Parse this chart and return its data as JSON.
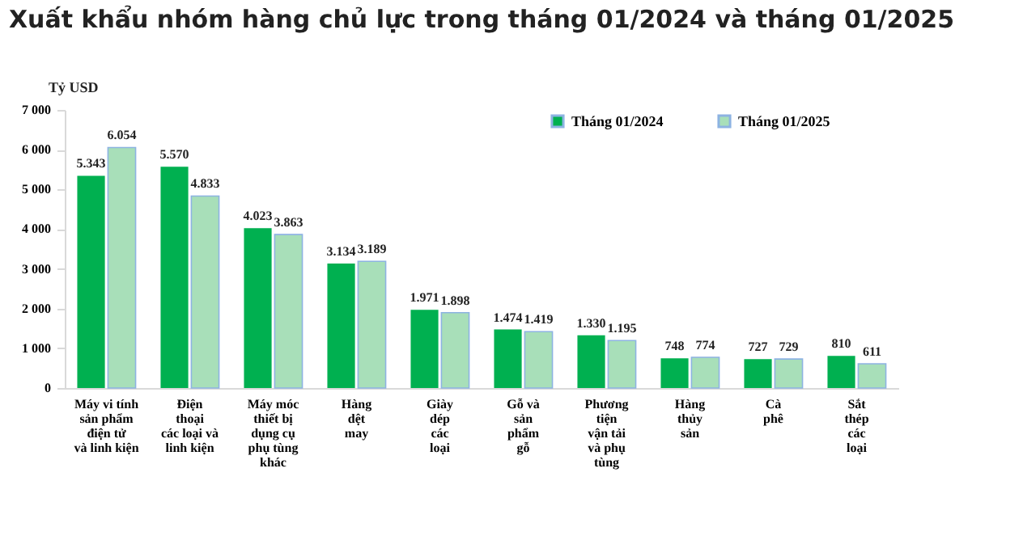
{
  "chart_data": {
    "type": "bar",
    "title": "Xuất khẩu nhóm hàng chủ lực trong tháng 01/2024 và tháng 01/2025",
    "ylabel": "Tỷ USD",
    "categories": [
      "Máy vi tính\nsản phẩm\nđiện tử\nvà linh kiện",
      "Điện\nthoại\ncác loại và\nlinh kiện",
      "Máy móc\nthiết bị\ndụng cụ\nphụ tùng\nkhác",
      "Hàng\ndệt\nmay",
      "Giày\ndép\ncác\nloại",
      "Gỗ và\nsản\nphẩm\ngỗ",
      "Phương\ntiện\nvận tải\nvà phụ\ntùng",
      "Hàng\nthủy\nsản",
      "Cà\nphê",
      "Sắt\nthép\ncác\nloại"
    ],
    "series": [
      {
        "name": "Tháng 01/2024",
        "color": "#00b050",
        "values": [
          5343,
          5570,
          4023,
          3134,
          1971,
          1474,
          1330,
          748,
          727,
          810
        ],
        "value_labels": [
          "5.343",
          "5.570",
          "4.023",
          "3.134",
          "1.971",
          "1.474",
          "1.330",
          "748",
          "727",
          "810"
        ]
      },
      {
        "name": "Tháng 01/2025",
        "color": "#a8dfb9",
        "values": [
          6054,
          4833,
          3863,
          3189,
          1898,
          1419,
          1195,
          774,
          729,
          611
        ],
        "value_labels": [
          "6.054",
          "4.833",
          "3.863",
          "3.189",
          "1.898",
          "1.419",
          "1.195",
          "774",
          "729",
          "611"
        ]
      }
    ],
    "ylim": [
      0,
      7000
    ],
    "yticks": [
      0,
      {
        "value": 1000,
        "label": "1 000"
      },
      {
        "value": 2000,
        "label": "2 000"
      },
      {
        "value": 3000,
        "label": "3 000"
      },
      {
        "value": 4000,
        "label": "4 000"
      },
      {
        "value": 5000,
        "label": "5 000"
      },
      {
        "value": 6000,
        "label": "6 000"
      },
      {
        "value": 7000,
        "label": "7 000"
      }
    ],
    "grid": false,
    "legend": "top right"
  }
}
